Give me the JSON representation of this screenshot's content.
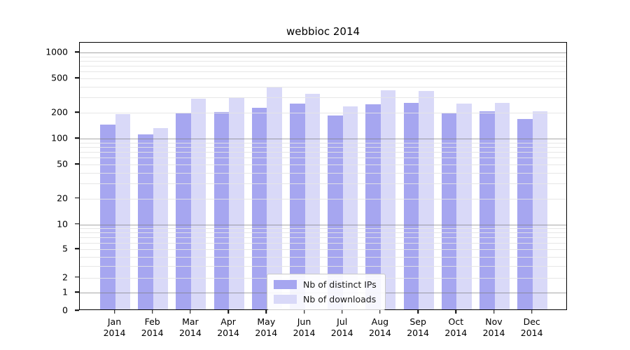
{
  "chart_data": {
    "type": "bar",
    "title": "webbioc 2014",
    "categories": [
      "Jan",
      "Feb",
      "Mar",
      "Apr",
      "May",
      "Jun",
      "Jul",
      "Aug",
      "Sep",
      "Oct",
      "Nov",
      "Dec"
    ],
    "year_label": "2014",
    "series": [
      {
        "name": "Nb of distinct IPs",
        "color": "#a6a6f0",
        "values": [
          140,
          108,
          188,
          198,
          220,
          245,
          178,
          243,
          250,
          190,
          200,
          162
        ]
      },
      {
        "name": "Nb of downloads",
        "color": "#d9d9f8",
        "values": [
          185,
          128,
          280,
          293,
          375,
          317,
          230,
          353,
          346,
          245,
          250,
          200
        ]
      }
    ],
    "yscale": "pseudo-log (asinh)",
    "ylim": [
      0,
      1100
    ],
    "yticks": [
      0,
      1,
      2,
      5,
      10,
      20,
      50,
      100,
      200,
      500,
      1000
    ],
    "major_gridlines": [
      1,
      10,
      100,
      1000
    ],
    "minor_gridlines": [
      2,
      3,
      4,
      5,
      6,
      7,
      8,
      9,
      20,
      30,
      40,
      50,
      60,
      70,
      80,
      90,
      200,
      300,
      400,
      500,
      600,
      700,
      800,
      900
    ],
    "grid": true,
    "legend_position": "bottom-center",
    "colors": {
      "axis": "#000000",
      "major_grid": "#9a9a9a",
      "minor_grid": "#e6e6e6",
      "background": "#ffffff"
    }
  }
}
